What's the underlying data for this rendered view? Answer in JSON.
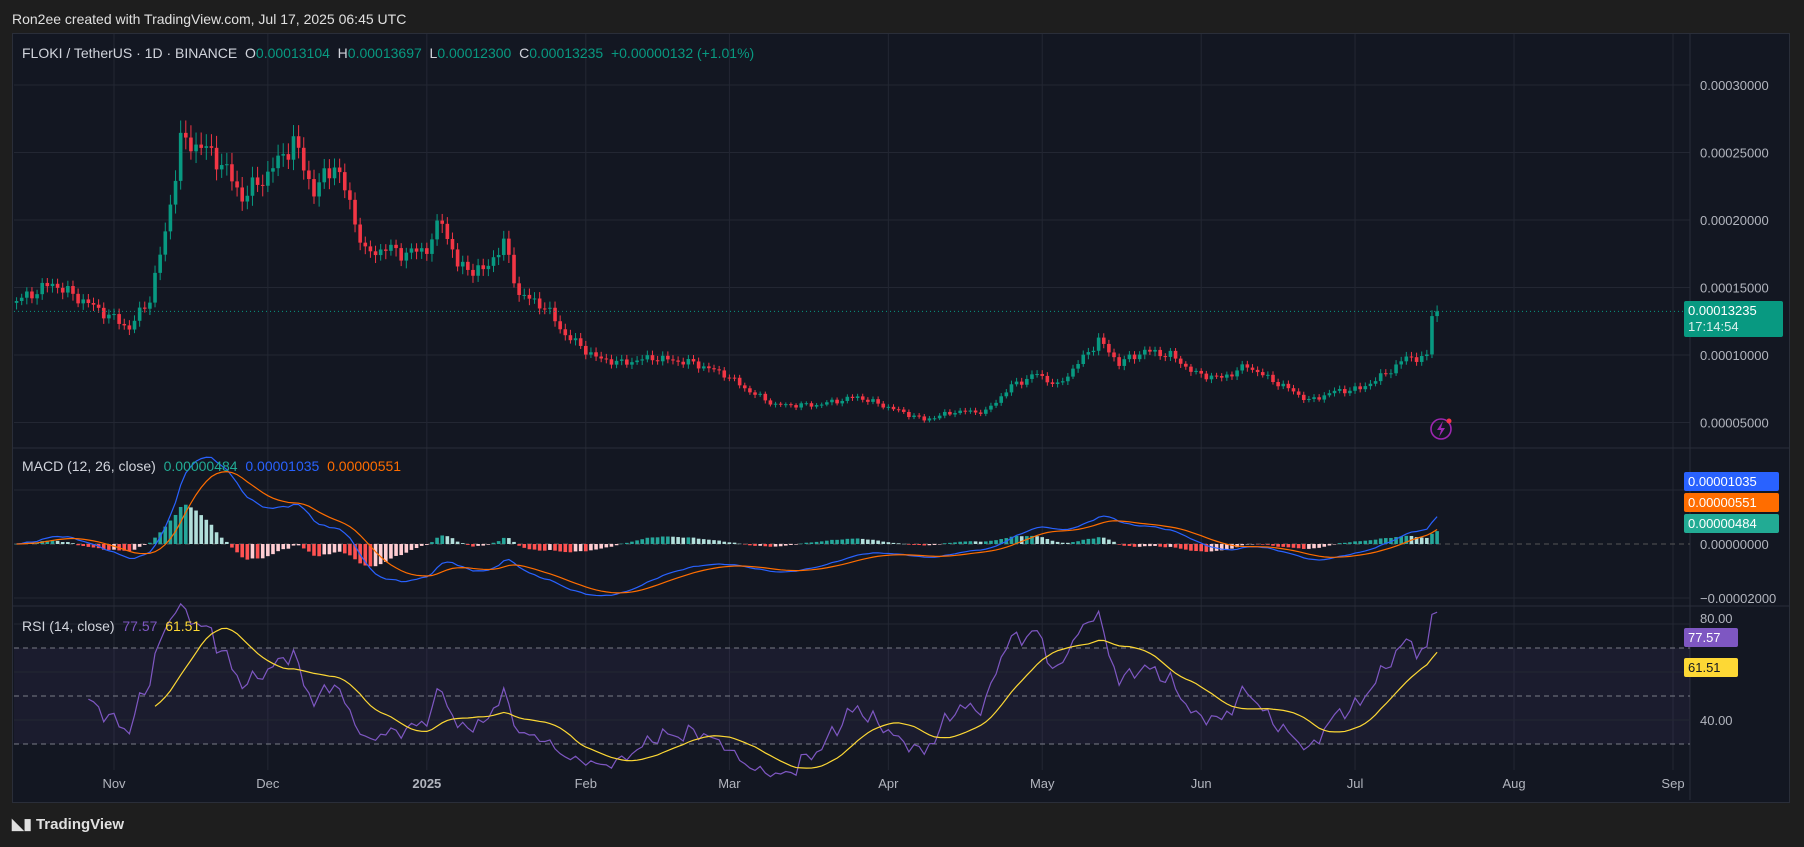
{
  "credit": "Ron2ee created with TradingView.com, Jul 17, 2025 06:45 UTC",
  "symbol": {
    "title": "FLOKI / TetherUS · 1D · BINANCE",
    "o_label": "O",
    "o": "0.00013104",
    "h_label": "H",
    "h": "0.00013697",
    "l_label": "L",
    "l": "0.00012300",
    "c_label": "C",
    "c": "0.00013235",
    "change": "+0.00000132 (+1.01%)"
  },
  "price_label": {
    "value": "0.00013235",
    "countdown": "17:14:54"
  },
  "macd": {
    "title": "MACD (12, 26, close)",
    "hist": "0.00000484",
    "macd": "0.00001035",
    "signal": "0.00000551",
    "axis": [
      "0.00000000",
      "−0.00002000"
    ]
  },
  "rsi": {
    "title": "RSI (14, close)",
    "rsi": "77.57",
    "ma": "61.51",
    "axis": [
      "80.00",
      "40.00"
    ]
  },
  "footer": "TradingView",
  "colors": {
    "up": "#089981",
    "down": "#f23645",
    "macd": "#2962ff",
    "signal": "#ff6d00",
    "rsi": "#7e57c2",
    "rsi_ma": "#fdd835"
  },
  "icons": [
    "lightning-icon",
    "tradingview-logo-icon"
  ],
  "chart_data": {
    "type": "candlestick",
    "price_axis": [
      "0.00030000",
      "0.00025000",
      "0.00020000",
      "0.00015000",
      "0.00010000",
      "0.00005000"
    ],
    "time_axis": [
      {
        "label": "Nov",
        "date": "2024-11-01"
      },
      {
        "label": "Dec",
        "date": "2024-12-01"
      },
      {
        "label": "2025",
        "date": "2025-01-01"
      },
      {
        "label": "Feb",
        "date": "2025-02-01"
      },
      {
        "label": "Mar",
        "date": "2025-03-01"
      },
      {
        "label": "Apr",
        "date": "2025-04-01"
      },
      {
        "label": "May",
        "date": "2025-05-01"
      },
      {
        "label": "Jun",
        "date": "2025-06-01"
      },
      {
        "label": "Jul",
        "date": "2025-07-01"
      },
      {
        "label": "Aug",
        "date": "2025-08-01"
      },
      {
        "label": "Sep",
        "date": "2025-09-01"
      }
    ],
    "approx_closes": [
      [
        "2024-10-13",
        0.00014
      ],
      [
        "2024-10-20",
        0.000153
      ],
      [
        "2024-10-28",
        0.000136
      ],
      [
        "2024-11-04",
        0.00012
      ],
      [
        "2024-11-08",
        0.000142
      ],
      [
        "2024-11-11",
        0.00019
      ],
      [
        "2024-11-14",
        0.000258
      ],
      [
        "2024-11-18",
        0.000255
      ],
      [
        "2024-11-22",
        0.000242
      ],
      [
        "2024-11-26",
        0.000217
      ],
      [
        "2024-12-01",
        0.000234
      ],
      [
        "2024-12-06",
        0.000258
      ],
      [
        "2024-12-10",
        0.000221
      ],
      [
        "2024-12-14",
        0.000242
      ],
      [
        "2024-12-17",
        0.000212
      ],
      [
        "2024-12-20",
        0.000175
      ],
      [
        "2024-12-24",
        0.000179
      ],
      [
        "2024-12-28",
        0.000175
      ],
      [
        "2025-01-01",
        0.000179
      ],
      [
        "2025-01-04",
        0.0002
      ],
      [
        "2025-01-07",
        0.000166
      ],
      [
        "2025-01-12",
        0.000162
      ],
      [
        "2025-01-16",
        0.000183
      ],
      [
        "2025-01-19",
        0.000145
      ],
      [
        "2025-01-24",
        0.000136
      ],
      [
        "2025-01-28",
        0.000115
      ],
      [
        "2025-02-03",
        9.8e-05
      ],
      [
        "2025-02-08",
        9.4e-05
      ],
      [
        "2025-02-14",
        9.8e-05
      ],
      [
        "2025-02-22",
        9.4e-05
      ],
      [
        "2025-02-28",
        8.6e-05
      ],
      [
        "2025-03-05",
        7.3e-05
      ],
      [
        "2025-03-10",
        6.3e-05
      ],
      [
        "2025-03-18",
        6.3e-05
      ],
      [
        "2025-03-26",
        6.9e-05
      ],
      [
        "2025-04-02",
        6e-05
      ],
      [
        "2025-04-08",
        5.2e-05
      ],
      [
        "2025-04-14",
        5.8e-05
      ],
      [
        "2025-04-20",
        5.8e-05
      ],
      [
        "2025-04-25",
        7.7e-05
      ],
      [
        "2025-04-30",
        8.6e-05
      ],
      [
        "2025-05-04",
        7.7e-05
      ],
      [
        "2025-05-09",
        9.8e-05
      ],
      [
        "2025-05-12",
        0.000111
      ],
      [
        "2025-05-16",
        9.4e-05
      ],
      [
        "2025-05-21",
        0.000103
      ],
      [
        "2025-05-26",
        0.0001
      ],
      [
        "2025-05-31",
        8.6e-05
      ],
      [
        "2025-06-05",
        8.3e-05
      ],
      [
        "2025-06-10",
        9.2e-05
      ],
      [
        "2025-06-14",
        8.3e-05
      ],
      [
        "2025-06-19",
        7.3e-05
      ],
      [
        "2025-06-22",
        6.6e-05
      ],
      [
        "2025-06-27",
        7.3e-05
      ],
      [
        "2025-07-02",
        7.5e-05
      ],
      [
        "2025-07-07",
        8.6e-05
      ],
      [
        "2025-07-11",
        9.8e-05
      ],
      [
        "2025-07-15",
        9.8e-05
      ],
      [
        "2025-07-16",
        0.000131
      ],
      [
        "2025-07-17",
        0.00013235
      ]
    ]
  }
}
